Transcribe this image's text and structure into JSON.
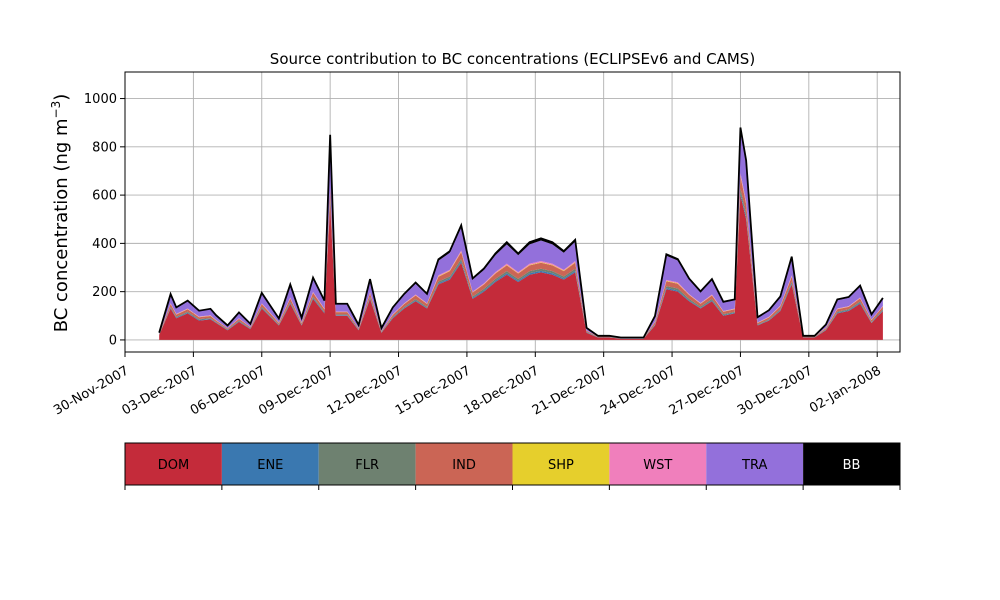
{
  "chart_data": {
    "type": "area",
    "stacked": true,
    "title": "Source contribution to BC concentrations (ECLIPSEv6 and CAMS)",
    "ylabel": "BC concentration (ng m⁻³)",
    "ylabel_main": "BC concentration (ng m",
    "ylabel_sup": "−3",
    "ylabel_close": ")",
    "xlabel": "",
    "x_unit": "date",
    "xlim": [
      "2007-11-30T00:00",
      "2008-01-03T00:00"
    ],
    "ylim": [
      -50,
      1110
    ],
    "grid": true,
    "x_ticks": [
      "30-Nov-2007",
      "03-Dec-2007",
      "06-Dec-2007",
      "09-Dec-2007",
      "12-Dec-2007",
      "15-Dec-2007",
      "18-Dec-2007",
      "21-Dec-2007",
      "24-Dec-2007",
      "27-Dec-2007",
      "30-Dec-2007",
      "02-Jan-2008"
    ],
    "y_ticks": [
      "0",
      "200",
      "400",
      "600",
      "800",
      "1000"
    ],
    "legend": {
      "placement": "bottom",
      "entries": [
        {
          "name": "DOM",
          "color": "#c42b3a",
          "text_color": "#000000"
        },
        {
          "name": "ENE",
          "color": "#3a78b0",
          "text_color": "#000000"
        },
        {
          "name": "FLR",
          "color": "#6e8170",
          "text_color": "#000000"
        },
        {
          "name": "IND",
          "color": "#cb6555",
          "text_color": "#000000"
        },
        {
          "name": "SHP",
          "color": "#e6cf2c",
          "text_color": "#000000"
        },
        {
          "name": "WST",
          "color": "#f07fbc",
          "text_color": "#000000"
        },
        {
          "name": "TRA",
          "color": "#9370db",
          "text_color": "#000000"
        },
        {
          "name": "BB",
          "color": "#000000",
          "text_color": "#ffffff"
        }
      ]
    },
    "x": [
      "2007-12-01T12:00",
      "2007-12-02T00:00",
      "2007-12-02T06:00",
      "2007-12-02T18:00",
      "2007-12-03T06:00",
      "2007-12-03T18:00",
      "2007-12-04T00:00",
      "2007-12-04T12:00",
      "2007-12-05T00:00",
      "2007-12-05T12:00",
      "2007-12-06T00:00",
      "2007-12-06T18:00",
      "2007-12-07T06:00",
      "2007-12-07T18:00",
      "2007-12-08T06:00",
      "2007-12-08T18:00",
      "2007-12-09T00:00",
      "2007-12-09T06:00",
      "2007-12-09T18:00",
      "2007-12-10T06:00",
      "2007-12-10T18:00",
      "2007-12-11T06:00",
      "2007-12-11T18:00",
      "2007-12-12T06:00",
      "2007-12-12T18:00",
      "2007-12-13T06:00",
      "2007-12-13T18:00",
      "2007-12-14T06:00",
      "2007-12-14T18:00",
      "2007-12-15T06:00",
      "2007-12-15T18:00",
      "2007-12-16T06:00",
      "2007-12-16T18:00",
      "2007-12-17T06:00",
      "2007-12-17T18:00",
      "2007-12-18T06:00",
      "2007-12-18T18:00",
      "2007-12-19T06:00",
      "2007-12-19T18:00",
      "2007-12-20T06:00",
      "2007-12-20T18:00",
      "2007-12-21T06:00",
      "2007-12-21T18:00",
      "2007-12-22T06:00",
      "2007-12-22T18:00",
      "2007-12-23T06:00",
      "2007-12-23T18:00",
      "2007-12-24T06:00",
      "2007-12-24T18:00",
      "2007-12-25T06:00",
      "2007-12-25T18:00",
      "2007-12-26T06:00",
      "2007-12-26T18:00",
      "2007-12-27T00:00",
      "2007-12-27T06:00",
      "2007-12-27T18:00",
      "2007-12-28T06:00",
      "2007-12-28T18:00",
      "2007-12-29T06:00",
      "2007-12-29T18:00",
      "2007-12-30T06:00",
      "2007-12-30T18:00",
      "2007-12-31T06:00",
      "2007-12-31T18:00",
      "2008-01-01T06:00",
      "2008-01-01T18:00",
      "2008-01-02T06:00"
    ],
    "series": [
      {
        "name": "DOM",
        "values": [
          20,
          130,
          90,
          110,
          80,
          85,
          70,
          40,
          75,
          45,
          130,
          60,
          150,
          60,
          170,
          110,
          560,
          100,
          100,
          40,
          170,
          30,
          90,
          130,
          160,
          130,
          230,
          250,
          320,
          170,
          200,
          240,
          270,
          240,
          270,
          280,
          270,
          250,
          280,
          30,
          10,
          10,
          5,
          5,
          5,
          60,
          210,
          200,
          160,
          130,
          160,
          100,
          110,
          600,
          500,
          60,
          80,
          120,
          230,
          10,
          10,
          40,
          110,
          120,
          150,
          70,
          120
        ]
      },
      {
        "name": "ENE",
        "values": [
          1,
          3,
          3,
          3,
          3,
          3,
          2,
          2,
          2,
          2,
          3,
          2,
          3,
          2,
          4,
          3,
          8,
          3,
          3,
          2,
          4,
          2,
          3,
          3,
          4,
          3,
          5,
          5,
          6,
          4,
          5,
          5,
          6,
          5,
          6,
          6,
          6,
          5,
          6,
          2,
          1,
          1,
          1,
          1,
          1,
          2,
          5,
          5,
          4,
          3,
          4,
          3,
          3,
          10,
          8,
          2,
          2,
          3,
          5,
          1,
          1,
          2,
          3,
          3,
          4,
          2,
          3
        ]
      },
      {
        "name": "FLR",
        "values": [
          1,
          4,
          3,
          4,
          3,
          3,
          2,
          2,
          3,
          2,
          4,
          2,
          5,
          2,
          5,
          4,
          12,
          3,
          3,
          2,
          5,
          2,
          3,
          4,
          5,
          4,
          7,
          8,
          10,
          6,
          7,
          8,
          9,
          8,
          9,
          9,
          9,
          8,
          9,
          2,
          1,
          1,
          1,
          1,
          1,
          3,
          8,
          8,
          6,
          5,
          6,
          4,
          4,
          18,
          15,
          2,
          3,
          4,
          7,
          1,
          1,
          2,
          4,
          4,
          5,
          3,
          4
        ]
      },
      {
        "name": "IND",
        "values": [
          2,
          12,
          9,
          10,
          8,
          8,
          6,
          4,
          7,
          4,
          12,
          6,
          14,
          6,
          16,
          10,
          40,
          9,
          9,
          4,
          15,
          3,
          8,
          12,
          15,
          12,
          20,
          22,
          28,
          16,
          18,
          22,
          24,
          22,
          24,
          25,
          24,
          22,
          25,
          4,
          2,
          2,
          1,
          1,
          1,
          8,
          20,
          20,
          16,
          12,
          14,
          10,
          10,
          50,
          40,
          6,
          8,
          12,
          20,
          2,
          2,
          5,
          10,
          10,
          13,
          7,
          11
        ]
      },
      {
        "name": "SHP",
        "values": [
          0,
          1,
          1,
          1,
          1,
          1,
          1,
          0,
          1,
          0,
          1,
          1,
          1,
          1,
          1,
          1,
          3,
          1,
          1,
          0,
          1,
          0,
          1,
          1,
          1,
          1,
          2,
          2,
          2,
          1,
          1,
          2,
          2,
          2,
          2,
          2,
          2,
          2,
          2,
          0,
          0,
          0,
          0,
          0,
          0,
          1,
          2,
          2,
          1,
          1,
          1,
          1,
          1,
          4,
          3,
          1,
          1,
          1,
          2,
          0,
          0,
          1,
          1,
          1,
          1,
          1,
          1
        ]
      },
      {
        "name": "WST",
        "values": [
          0,
          2,
          2,
          2,
          2,
          2,
          1,
          1,
          2,
          1,
          2,
          1,
          3,
          1,
          3,
          2,
          8,
          2,
          2,
          1,
          3,
          1,
          2,
          2,
          3,
          2,
          4,
          4,
          5,
          3,
          4,
          4,
          5,
          4,
          5,
          5,
          5,
          4,
          5,
          1,
          0,
          0,
          0,
          0,
          0,
          2,
          4,
          4,
          3,
          2,
          3,
          2,
          2,
          10,
          8,
          1,
          2,
          2,
          4,
          0,
          0,
          1,
          2,
          2,
          3,
          1,
          2
        ]
      },
      {
        "name": "TRA",
        "values": [
          4,
          35,
          25,
          30,
          22,
          25,
          18,
          10,
          22,
          12,
          40,
          15,
          50,
          18,
          55,
          30,
          205,
          30,
          30,
          12,
          50,
          10,
          25,
          35,
          45,
          35,
          60,
          70,
          95,
          50,
          55,
          70,
          80,
          70,
          80,
          85,
          80,
          70,
          80,
          10,
          3,
          3,
          2,
          2,
          2,
          20,
          100,
          90,
          60,
          45,
          60,
          35,
          35,
          170,
          160,
          20,
          25,
          35,
          70,
          3,
          3,
          12,
          35,
          35,
          45,
          20,
          30
        ]
      },
      {
        "name": "BB",
        "values": [
          2,
          3,
          2,
          3,
          2,
          2,
          2,
          1,
          2,
          1,
          3,
          2,
          4,
          2,
          4,
          3,
          14,
          2,
          2,
          1,
          4,
          1,
          3,
          4,
          5,
          4,
          6,
          7,
          9,
          5,
          6,
          7,
          9,
          7,
          9,
          9,
          9,
          7,
          8,
          1,
          0,
          0,
          0,
          0,
          0,
          3,
          6,
          6,
          4,
          3,
          4,
          3,
          3,
          18,
          10,
          2,
          2,
          3,
          7,
          0,
          0,
          1,
          3,
          3,
          4,
          2,
          3
        ]
      }
    ]
  }
}
